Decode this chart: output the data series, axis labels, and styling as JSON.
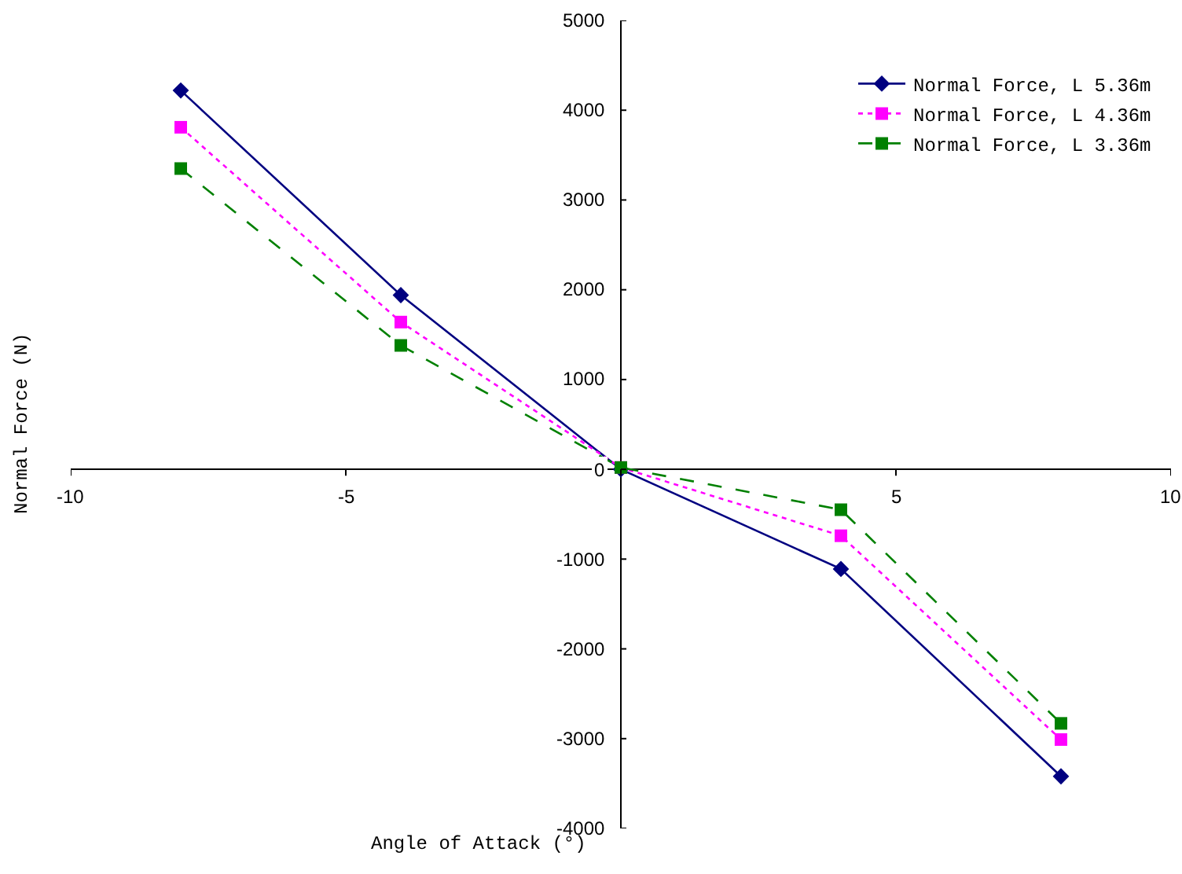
{
  "chart_data": {
    "type": "line",
    "xlabel": "Angle of Attack (°)",
    "ylabel": "Normal Force (N)",
    "x": [
      -8,
      -4,
      0,
      4,
      8
    ],
    "series": [
      {
        "name": "Normal Force, L 5.36m",
        "color": "#000080",
        "values": [
          4220,
          1940,
          0,
          -1110,
          -3420
        ],
        "marker": "diamond",
        "line_style": "solid"
      },
      {
        "name": "Normal Force, L 4.36m",
        "color": "#ff00ff",
        "values": [
          3810,
          1640,
          20,
          -740,
          -3010
        ],
        "marker": "square",
        "line_style": "dotted"
      },
      {
        "name": "Normal Force, L 3.36m",
        "color": "#008000",
        "values": [
          3350,
          1380,
          20,
          -450,
          -2830
        ],
        "marker": "square",
        "line_style": "dashed"
      }
    ],
    "xlim": [
      -10,
      10
    ],
    "ylim": [
      -4000,
      5000
    ],
    "xticks": [
      -10,
      -5,
      {
        "value": 0,
        "label": null
      },
      5,
      10
    ],
    "yticks": [
      -4000,
      -3000,
      -2000,
      -1000,
      0,
      1000,
      2000,
      3000,
      4000,
      5000
    ],
    "legend": "top right"
  }
}
